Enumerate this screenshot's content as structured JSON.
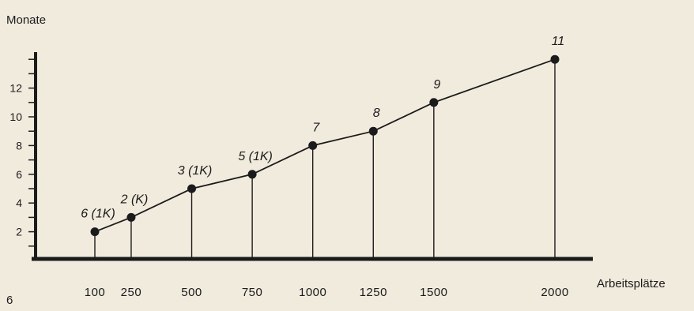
{
  "chart_data": {
    "type": "line",
    "title": "",
    "ylabel": "Monate",
    "xlabel": "Arbeitsplätze",
    "categories": [
      "100",
      "250",
      "500",
      "750",
      "1000",
      "1250",
      "1500",
      "2000"
    ],
    "x": [
      100,
      250,
      500,
      750,
      1000,
      1250,
      1500,
      2000
    ],
    "values": [
      2,
      3,
      5,
      6,
      8,
      9,
      11,
      14
    ],
    "annotations": [
      "6 (1K)",
      "2 (K)",
      "3 (1K)",
      "5 (1K)",
      "7",
      "8",
      "9",
      "11"
    ],
    "yticks": [
      "2",
      "4",
      "6",
      "8",
      "10",
      "12"
    ],
    "ylim": [
      0,
      14
    ],
    "grid": false,
    "drop_lines": true,
    "colors": {
      "line": "#1b1b1b",
      "background": "#f1ebde"
    }
  },
  "page_number": "6"
}
